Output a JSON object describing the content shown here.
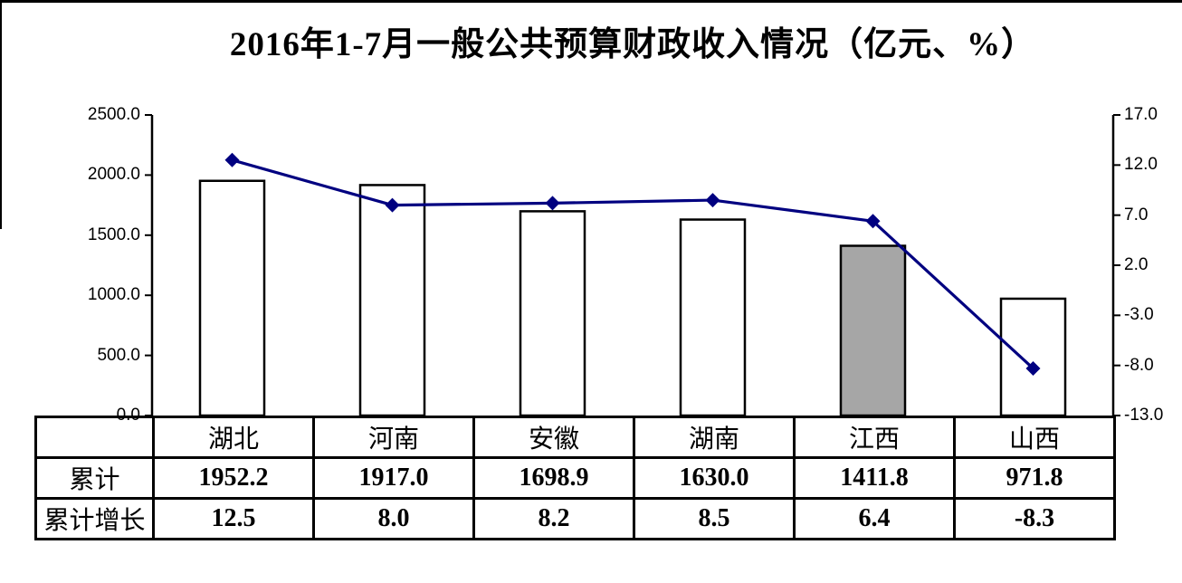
{
  "title": "2016年1-7月一般公共预算财政收入情况（亿元、%）",
  "chart_data": {
    "type": "bar",
    "subtype": "bar-line-combo-with-data-table",
    "categories": [
      "湖北",
      "河南",
      "安徽",
      "湖南",
      "江西",
      "山西"
    ],
    "series": [
      {
        "name": "累计",
        "type": "bar",
        "axis": "left",
        "values": [
          1952.2,
          1917.0,
          1698.9,
          1630.0,
          1411.8,
          971.8
        ]
      },
      {
        "name": "累计增长",
        "type": "line",
        "axis": "right",
        "values": [
          12.5,
          8.0,
          8.2,
          8.5,
          6.4,
          -8.3
        ]
      }
    ],
    "left_axis": {
      "min": 0,
      "max": 2500,
      "step": 500,
      "tick_labels": [
        "2500.0",
        "2000.0",
        "1500.0",
        "1000.0",
        "500.0",
        "0.0"
      ]
    },
    "right_axis": {
      "min": -13,
      "max": 17,
      "step": 5,
      "tick_labels": [
        "17.0",
        "12.0",
        "7.0",
        "2.0",
        "-3.0",
        "-8.0",
        "-13.0"
      ]
    },
    "highlight_index": 4,
    "highlighted_category": "江西",
    "grid": false,
    "legend": "none",
    "colors": {
      "bar_fill": "#ffffff",
      "bar_highlight_fill": "#a6a6a6",
      "bar_border": "#000000",
      "line": "#000080",
      "marker": "#000080",
      "axis": "#000000"
    }
  },
  "table": {
    "row_labels": [
      "累计",
      "累计增长"
    ],
    "rows": [
      [
        "1952.2",
        "1917.0",
        "1698.9",
        "1630.0",
        "1411.8",
        "971.8"
      ],
      [
        "12.5",
        "8.0",
        "8.2",
        "8.5",
        "6.4",
        "-8.3"
      ]
    ]
  }
}
